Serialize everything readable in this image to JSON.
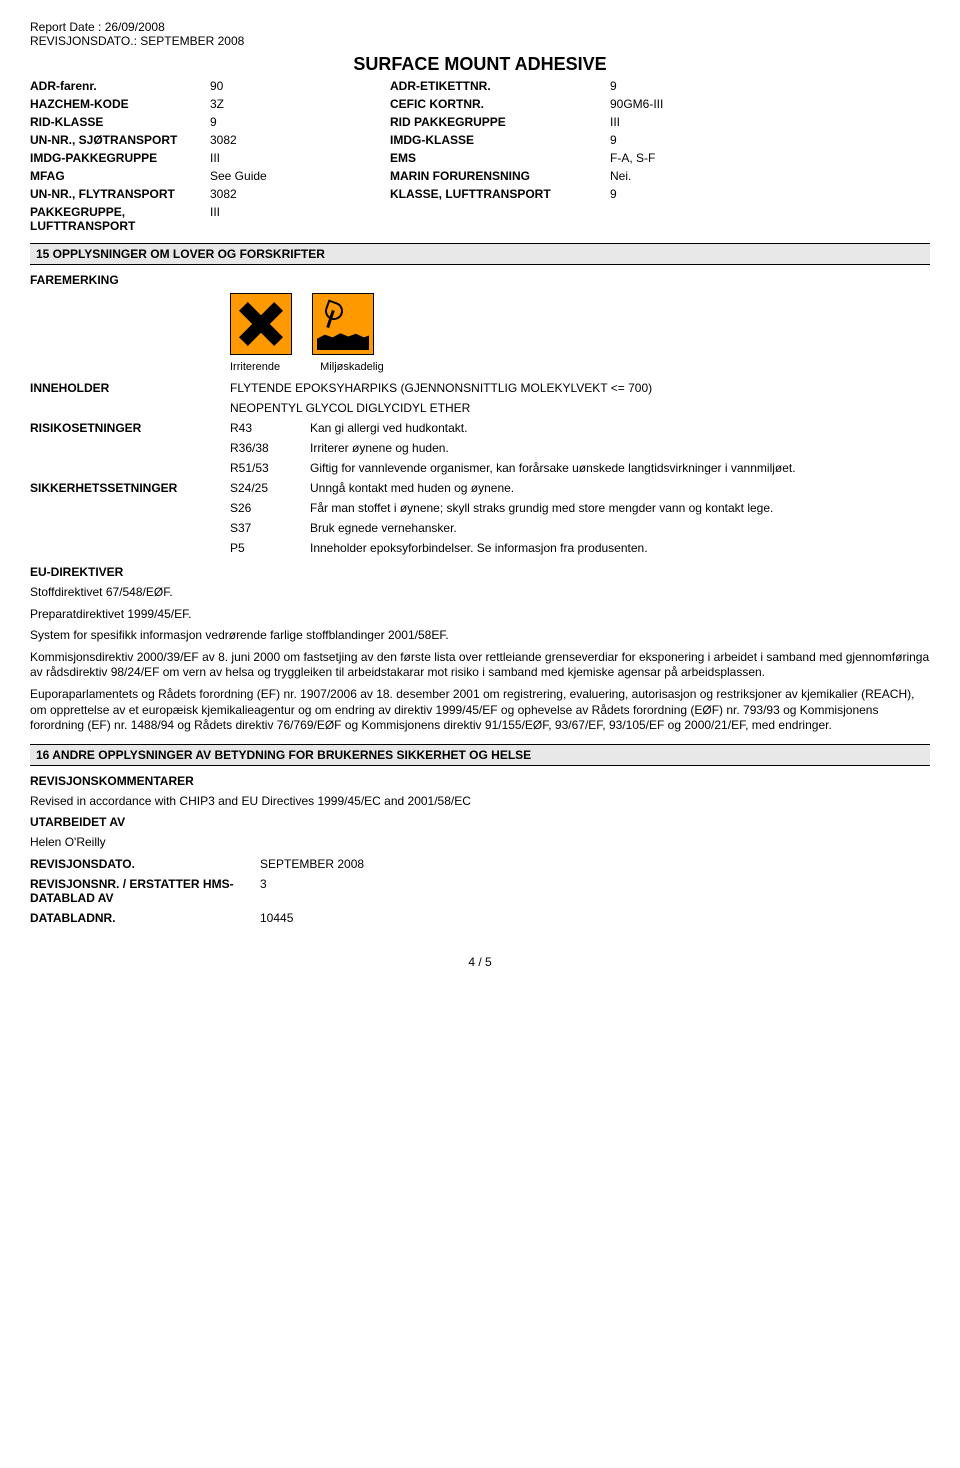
{
  "header": {
    "report_date_label": "Report Date : ",
    "report_date_value": "26/09/2008",
    "rev_date_label": "REVISJONSDATO.: ",
    "rev_date_value": "SEPTEMBER 2008"
  },
  "title": "SURFACE MOUNT ADHESIVE",
  "transport": [
    {
      "l1": "ADR-farenr.",
      "v1": "90",
      "l2": "ADR-ETIKETTNR.",
      "v2": "9"
    },
    {
      "l1": "HAZCHEM-KODE",
      "v1": "3Z",
      "l2": "CEFIC KORTNR.",
      "v2": "90GM6-III"
    },
    {
      "l1": "RID-KLASSE",
      "v1": "9",
      "l2": "RID PAKKEGRUPPE",
      "v2": "III"
    },
    {
      "l1": "UN-NR., SJØTRANSPORT",
      "v1": "3082",
      "l2": "IMDG-KLASSE",
      "v2": "9"
    },
    {
      "l1": "IMDG-PAKKEGRUPPE",
      "v1": "III",
      "l2": "EMS",
      "v2": "F-A,  S-F"
    },
    {
      "l1": "MFAG",
      "v1": "See Guide",
      "l2": "MARIN FORURENSNING",
      "v2": "Nei."
    },
    {
      "l1": "UN-NR., FLYTRANSPORT",
      "v1": "3082",
      "l2": "KLASSE, LUFTTRANSPORT",
      "v2": "9"
    },
    {
      "l1": "PAKKEGRUPPE, LUFTTRANSPORT",
      "v1": "III",
      "l2": "",
      "v2": ""
    }
  ],
  "section15_title": "15 OPPLYSNINGER OM LOVER OG FORSKRIFTER",
  "faremerking_label": "FAREMERKING",
  "hazard_icons": {
    "irritant_caption": "Irriterende",
    "env_caption": "Miljøskadelig",
    "bg_color": "#ff9900"
  },
  "inneholder_label": "INNEHOLDER",
  "inneholder_lines": [
    "FLYTENDE EPOKSYHARPIKS (GJENNONSNITTLIG MOLEKYLVEKT <= 700)",
    "NEOPENTYL GLYCOL DIGLYCIDYL ETHER"
  ],
  "risikosetninger_label": "RISIKOSETNINGER",
  "r_phrases": [
    {
      "code": "R43",
      "text": "Kan gi allergi ved hudkontakt."
    },
    {
      "code": "R36/38",
      "text": "Irriterer øynene og huden."
    },
    {
      "code": "R51/53",
      "text": "Giftig for vannlevende organismer,  kan forårsake uønskede langtidsvirkninger i vannmiljøet."
    }
  ],
  "sikkerhet_label": "SIKKERHETSSETNINGER",
  "s_phrases": [
    {
      "code": "S24/25",
      "text": "Unngå kontakt med huden og øynene."
    },
    {
      "code": "S26",
      "text": "Får man stoffet i øynene; skyll straks grundig med store mengder vann og kontakt lege."
    },
    {
      "code": "S37",
      "text": "Bruk egnede vernehansker."
    },
    {
      "code": "P5",
      "text": "Inneholder epoksyforbindelser. Se informasjon fra produsenten."
    }
  ],
  "eu_direktiver_label": "EU-DIREKTIVER",
  "paragraphs": [
    "Stoffdirektivet 67/548/EØF.",
    "Preparatdirektivet 1999/45/EF.",
    "System for spesifikk informasjon vedrørende farlige stoffblandinger 2001/58EF.",
    "Kommisjonsdirektiv 2000/39/EF av 8. juni 2000 om fastsetjing av den første lista over rettleiande grenseverdiar for eksponering i arbeidet i samband med gjennomføringa av rådsdirektiv 98/24/EF om vern av helsa og tryggleiken til arbeidstakarar mot risiko i samband med kjemiske agensar på arbeidsplassen.",
    "Euporaparlamentets og Rådets forordning (EF) nr. 1907/2006 av 18. desember 2001 om registrering,  evaluering, autorisasjon og restriksjoner av kjemikalier (REACH),  om opprettelse av et europæisk kjemikalieagentur og om endring av direktiv 1999/45/EF og ophevelse av Rådets forordning (EØF) nr. 793/93 og Kommisjonens forordning (EF) nr. 1488/94 og Rådets direktiv 76/769/EØF og Kommisjonens direktiv 91/155/EØF,  93/67/EF,  93/105/EF og 2000/21/EF,  med endringer."
  ],
  "section16_title": "16 ANDRE OPPLYSNINGER AV BETYDNING FOR BRUKERNES SIKKERHET OG HELSE",
  "rev_comments_label": "REVISJONSKOMMENTARER",
  "rev_comments_text": "Revised in accordance with CHIP3 and EU Directives 1999/45/EC and 2001/58/EC",
  "utarbeidet_label": "UTARBEIDET AV",
  "utarbeidet_value": "Helen O'Reilly",
  "rev_rows": [
    {
      "label": "REVISJONSDATO.",
      "value": "SEPTEMBER 2008"
    },
    {
      "label": "REVISJONSNR. / ERSTATTER HMS-DATABLAD AV",
      "value": "3"
    },
    {
      "label": "DATABLADNR.",
      "value": "10445"
    }
  ],
  "page_footer": "4 /  5"
}
